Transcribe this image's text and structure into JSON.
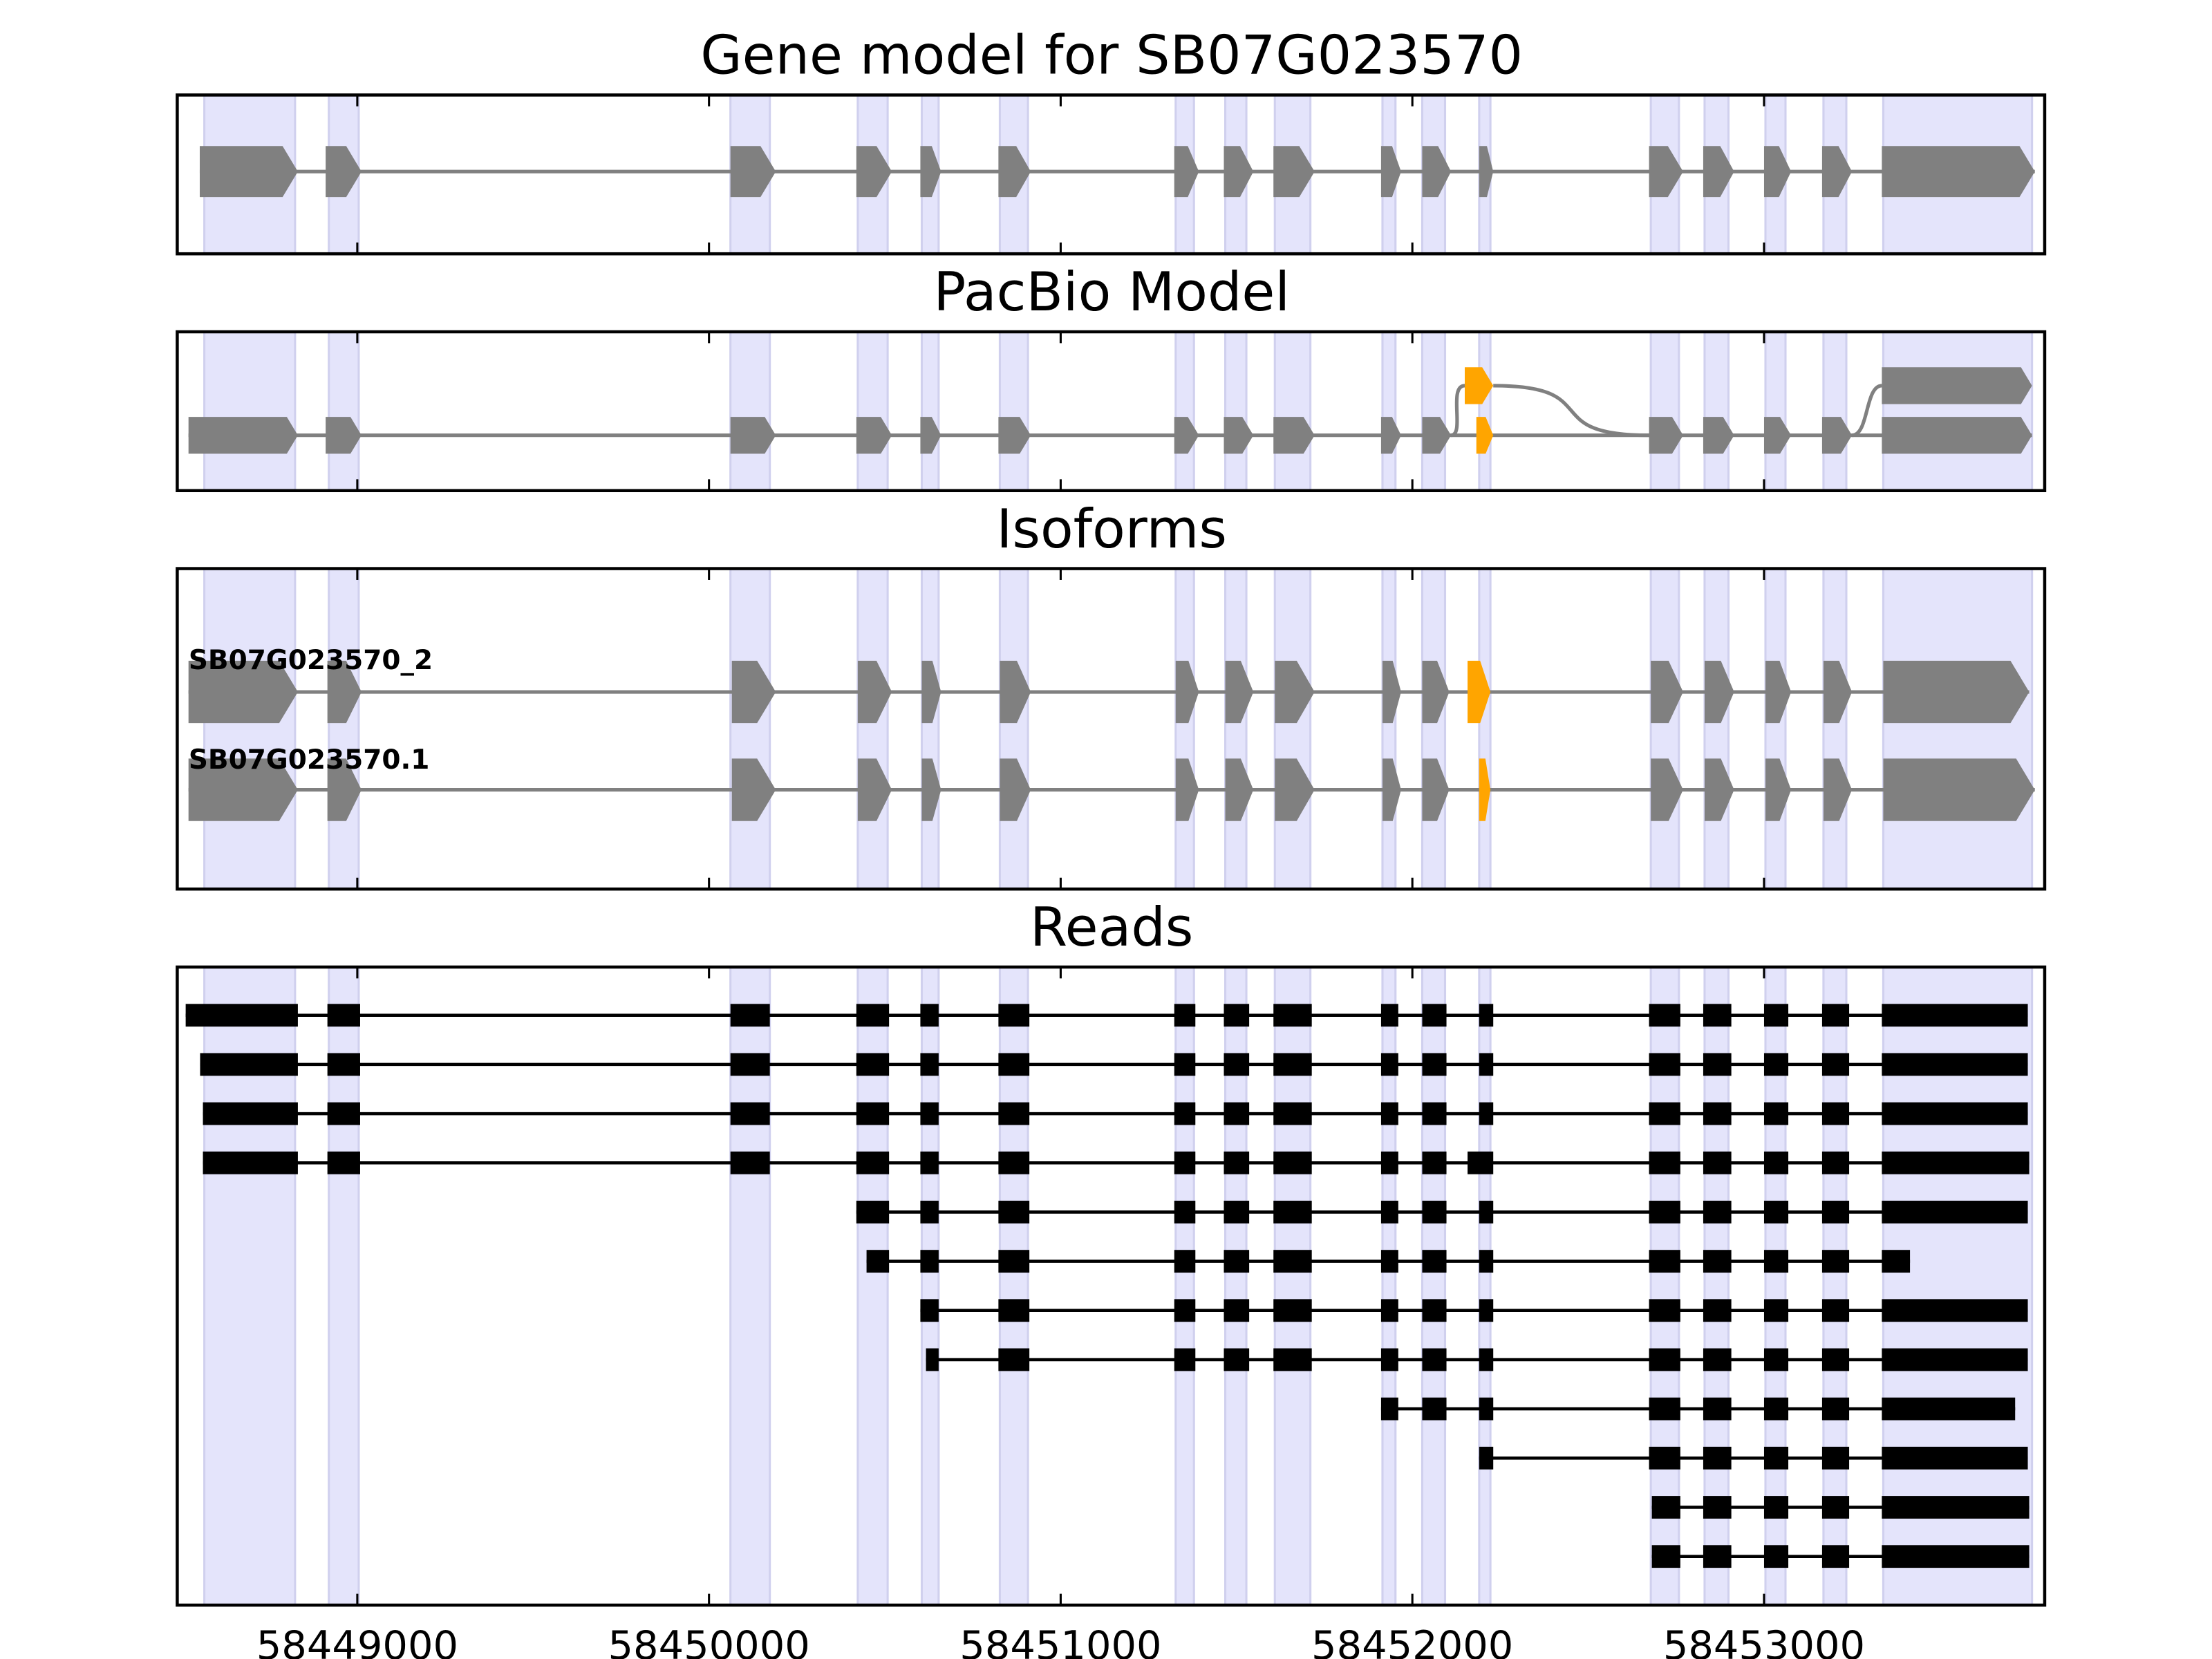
{
  "titles": {
    "gene": "Gene model for SB07G023570",
    "pacbio": "PacBio Model",
    "isoforms": "Isoforms",
    "reads": "Reads"
  },
  "colors": {
    "exon": "#808080",
    "highlight": "#FFA500",
    "read": "#000000",
    "shade": "#0000ff"
  },
  "axis": {
    "xlim": [
      58448488,
      58453798
    ],
    "ticks": [
      58449000,
      58450000,
      58451000,
      58452000,
      58453000
    ],
    "tick_labels": [
      "58449000",
      "58450000",
      "58451000",
      "58452000",
      "58453000"
    ]
  },
  "shaded_exons": [
    [
      58448565,
      58448823
    ],
    [
      58448919,
      58449004
    ],
    [
      58450061,
      58450173
    ],
    [
      58450423,
      58450508
    ],
    [
      58450605,
      58450653
    ],
    [
      58450827,
      58450907
    ],
    [
      58451327,
      58451379
    ],
    [
      58451468,
      58451528
    ],
    [
      58451609,
      58451710
    ],
    [
      58451915,
      58451952
    ],
    [
      58452028,
      58452093
    ],
    [
      58452190,
      58452222
    ],
    [
      58452678,
      58452758
    ],
    [
      58452831,
      58452899
    ],
    [
      58453004,
      58453061
    ],
    [
      58453169,
      58453234
    ],
    [
      58453339,
      58453762
    ]
  ],
  "gene_model": {
    "exons": [
      [
        58448552,
        58448831
      ],
      [
        58448910,
        58449012
      ],
      [
        58450061,
        58450190
      ],
      [
        58450419,
        58450520
      ],
      [
        58450601,
        58450660
      ],
      [
        58450823,
        58450915
      ],
      [
        58451323,
        58451393
      ],
      [
        58451464,
        58451548
      ],
      [
        58451605,
        58451722
      ],
      [
        58451911,
        58451968
      ],
      [
        58452028,
        58452110
      ],
      [
        58452190,
        58452230
      ],
      [
        58452673,
        58452770
      ],
      [
        58452827,
        58452915
      ],
      [
        58453000,
        58453077
      ],
      [
        58453165,
        58453250
      ],
      [
        58453335,
        58453770
      ]
    ]
  },
  "pacbio": {
    "bottom": {
      "exons": [
        [
          58448520,
          58448831
        ],
        [
          58448910,
          58449012
        ],
        [
          58450061,
          58450190
        ],
        [
          58450419,
          58450520
        ],
        [
          58450601,
          58450660
        ],
        [
          58450823,
          58450915
        ],
        [
          58451323,
          58451393
        ],
        [
          58451464,
          58451548
        ],
        [
          58451605,
          58451722
        ],
        [
          58451911,
          58451968
        ],
        [
          58452028,
          58452110
        ],
        [
          58452182,
          58452230
        ],
        [
          58452673,
          58452770
        ],
        [
          58452827,
          58452915
        ],
        [
          58453000,
          58453077
        ],
        [
          58453165,
          58453250
        ],
        [
          58453335,
          58453762
        ]
      ],
      "highlight_index": 11
    },
    "branch_exon": [
      58452149,
      58452230
    ],
    "top_last_exon": [
      58453335,
      58453762
    ]
  },
  "isoforms": [
    {
      "name": "SB07G023570_2",
      "exons": [
        [
          58448520,
          58448831
        ],
        [
          58448915,
          58449012
        ],
        [
          58450065,
          58450190
        ],
        [
          58450423,
          58450520
        ],
        [
          58450605,
          58450660
        ],
        [
          58450827,
          58450915
        ],
        [
          58451327,
          58451393
        ],
        [
          58451468,
          58451548
        ],
        [
          58451609,
          58451722
        ],
        [
          58451915,
          58451968
        ],
        [
          58452028,
          58452105
        ],
        [
          58452157,
          58452222
        ],
        [
          58452678,
          58452770
        ],
        [
          58452831,
          58452915
        ],
        [
          58453004,
          58453077
        ],
        [
          58453169,
          58453250
        ],
        [
          58453339,
          58453754
        ]
      ],
      "highlight_index": 11
    },
    {
      "name": "SB07G023570.1",
      "exons": [
        [
          58448520,
          58448831
        ],
        [
          58448915,
          58449012
        ],
        [
          58450065,
          58450190
        ],
        [
          58450423,
          58450520
        ],
        [
          58450605,
          58450660
        ],
        [
          58450827,
          58450915
        ],
        [
          58451327,
          58451393
        ],
        [
          58451468,
          58451548
        ],
        [
          58451609,
          58451722
        ],
        [
          58451915,
          58451968
        ],
        [
          58452028,
          58452105
        ],
        [
          58452190,
          58452222
        ],
        [
          58452678,
          58452770
        ],
        [
          58452831,
          58452915
        ],
        [
          58453004,
          58453077
        ],
        [
          58453169,
          58453250
        ],
        [
          58453339,
          58453770
        ]
      ],
      "highlight_index": 11
    }
  ],
  "reads": [
    [
      [
        58448512,
        58448831
      ],
      [
        58448915,
        58449008
      ],
      [
        58450061,
        58450173
      ],
      [
        58450419,
        58450512
      ],
      [
        58450601,
        58450653
      ],
      [
        58450823,
        58450911
      ],
      [
        58451323,
        58451383
      ],
      [
        58451464,
        58451536
      ],
      [
        58451605,
        58451714
      ],
      [
        58451911,
        58451960
      ],
      [
        58452028,
        58452097
      ],
      [
        58452190,
        58452230
      ],
      [
        58452673,
        58452762
      ],
      [
        58452827,
        58452907
      ],
      [
        58453000,
        58453069
      ],
      [
        58453165,
        58453242
      ],
      [
        58453335,
        58453750
      ]
    ],
    [
      [
        58448553,
        58448831
      ],
      [
        58448915,
        58449008
      ],
      [
        58450061,
        58450173
      ],
      [
        58450419,
        58450512
      ],
      [
        58450601,
        58450653
      ],
      [
        58450823,
        58450911
      ],
      [
        58451323,
        58451383
      ],
      [
        58451464,
        58451536
      ],
      [
        58451605,
        58451714
      ],
      [
        58451911,
        58451960
      ],
      [
        58452028,
        58452097
      ],
      [
        58452190,
        58452230
      ],
      [
        58452673,
        58452762
      ],
      [
        58452827,
        58452907
      ],
      [
        58453000,
        58453069
      ],
      [
        58453165,
        58453242
      ],
      [
        58453335,
        58453750
      ]
    ],
    [
      [
        58448561,
        58448831
      ],
      [
        58448915,
        58449008
      ],
      [
        58450061,
        58450173
      ],
      [
        58450419,
        58450512
      ],
      [
        58450601,
        58450653
      ],
      [
        58450823,
        58450911
      ],
      [
        58451323,
        58451383
      ],
      [
        58451464,
        58451536
      ],
      [
        58451605,
        58451714
      ],
      [
        58451911,
        58451960
      ],
      [
        58452028,
        58452097
      ],
      [
        58452190,
        58452230
      ],
      [
        58452673,
        58452762
      ],
      [
        58452827,
        58452907
      ],
      [
        58453000,
        58453069
      ],
      [
        58453165,
        58453242
      ],
      [
        58453335,
        58453750
      ]
    ],
    [
      [
        58448561,
        58448831
      ],
      [
        58448915,
        58449008
      ],
      [
        58450061,
        58450173
      ],
      [
        58450419,
        58450512
      ],
      [
        58450601,
        58450653
      ],
      [
        58450823,
        58450911
      ],
      [
        58451323,
        58451383
      ],
      [
        58451464,
        58451536
      ],
      [
        58451605,
        58451714
      ],
      [
        58451911,
        58451960
      ],
      [
        58452028,
        58452097
      ],
      [
        58452157,
        58452230
      ],
      [
        58452673,
        58452762
      ],
      [
        58452827,
        58452907
      ],
      [
        58453000,
        58453069
      ],
      [
        58453165,
        58453242
      ],
      [
        58453335,
        58453754
      ]
    ],
    [
      [
        58450419,
        58450512
      ],
      [
        58450601,
        58450653
      ],
      [
        58450823,
        58450911
      ],
      [
        58451323,
        58451383
      ],
      [
        58451464,
        58451536
      ],
      [
        58451605,
        58451714
      ],
      [
        58451911,
        58451960
      ],
      [
        58452028,
        58452097
      ],
      [
        58452190,
        58452230
      ],
      [
        58452673,
        58452762
      ],
      [
        58452827,
        58452907
      ],
      [
        58453000,
        58453069
      ],
      [
        58453165,
        58453242
      ],
      [
        58453335,
        58453750
      ]
    ],
    [
      [
        58450448,
        58450512
      ],
      [
        58450601,
        58450653
      ],
      [
        58450823,
        58450911
      ],
      [
        58451323,
        58451383
      ],
      [
        58451464,
        58451536
      ],
      [
        58451605,
        58451714
      ],
      [
        58451911,
        58451960
      ],
      [
        58452028,
        58452097
      ],
      [
        58452190,
        58452230
      ],
      [
        58452673,
        58452762
      ],
      [
        58452827,
        58452907
      ],
      [
        58453000,
        58453069
      ],
      [
        58453165,
        58453242
      ],
      [
        58453335,
        58453415
      ]
    ],
    [
      [
        58450601,
        58450653
      ],
      [
        58450823,
        58450911
      ],
      [
        58451323,
        58451383
      ],
      [
        58451464,
        58451536
      ],
      [
        58451605,
        58451714
      ],
      [
        58451911,
        58451960
      ],
      [
        58452028,
        58452097
      ],
      [
        58452190,
        58452230
      ],
      [
        58452673,
        58452762
      ],
      [
        58452827,
        58452907
      ],
      [
        58453000,
        58453069
      ],
      [
        58453165,
        58453242
      ],
      [
        58453335,
        58453750
      ]
    ],
    [
      [
        58450617,
        58450653
      ],
      [
        58450823,
        58450911
      ],
      [
        58451323,
        58451383
      ],
      [
        58451464,
        58451536
      ],
      [
        58451605,
        58451714
      ],
      [
        58451911,
        58451960
      ],
      [
        58452028,
        58452097
      ],
      [
        58452190,
        58452230
      ],
      [
        58452673,
        58452762
      ],
      [
        58452827,
        58452907
      ],
      [
        58453000,
        58453069
      ],
      [
        58453165,
        58453242
      ],
      [
        58453335,
        58453750
      ]
    ],
    [
      [
        58451911,
        58451960
      ],
      [
        58452028,
        58452097
      ],
      [
        58452190,
        58452230
      ],
      [
        58452673,
        58452762
      ],
      [
        58452827,
        58452907
      ],
      [
        58453000,
        58453069
      ],
      [
        58453165,
        58453242
      ],
      [
        58453335,
        58453714
      ]
    ],
    [
      [
        58452190,
        58452230
      ],
      [
        58452673,
        58452762
      ],
      [
        58452827,
        58452907
      ],
      [
        58453000,
        58453069
      ],
      [
        58453165,
        58453242
      ],
      [
        58453335,
        58453750
      ]
    ],
    [
      [
        58452681,
        58452762
      ],
      [
        58452827,
        58452907
      ],
      [
        58453000,
        58453069
      ],
      [
        58453165,
        58453242
      ],
      [
        58453335,
        58453754
      ]
    ],
    [
      [
        58452681,
        58452762
      ],
      [
        58452827,
        58452907
      ],
      [
        58453000,
        58453069
      ],
      [
        58453165,
        58453242
      ],
      [
        58453335,
        58453754
      ]
    ]
  ]
}
